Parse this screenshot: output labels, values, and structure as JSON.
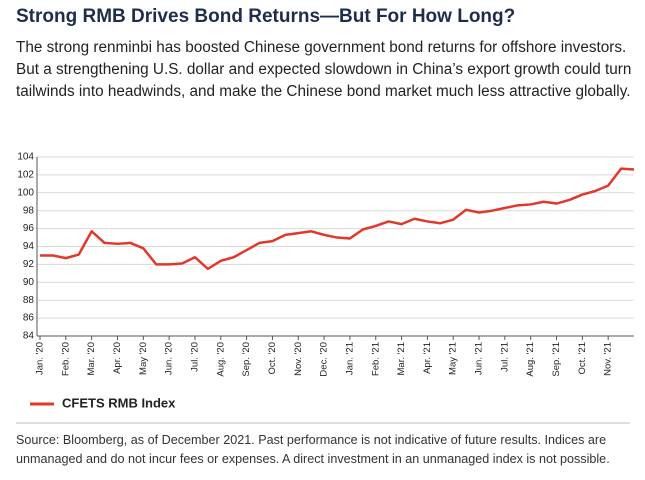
{
  "chart_data": {
    "type": "line",
    "title": "Strong RMB Drives Bond Returns—But For How Long?",
    "subtitle": "The strong renminbi has boosted Chinese government bond returns for offshore investors. But a strengthening U.S. dollar and expected slowdown in China’s export growth could turn tailwinds into headwinds, and make the Chinese bond market much less attractive globally.",
    "categories": [
      "Jan. '20",
      null,
      "Feb. '20",
      null,
      "Mar. '20",
      null,
      "Apr. '20",
      null,
      "May '20",
      null,
      "Jun. '20",
      null,
      "Jul. '20",
      null,
      "Aug. '20",
      null,
      "Sep. '20",
      null,
      "Oct. '20",
      null,
      "Nov. '20",
      null,
      "Dec. '20",
      null,
      "Jan. '21",
      null,
      "Feb. '21",
      null,
      "Mar. '21",
      null,
      "Apr. '21",
      null,
      "May '21",
      null,
      "Jun. '21",
      null,
      "Jul. '21",
      null,
      "Aug. '21",
      null,
      "Sep. '21",
      null,
      "Oct. '21",
      null,
      "Nov. '21",
      null,
      null
    ],
    "series": [
      {
        "name": "CFETS RMB Index",
        "color": "#e2372a",
        "values": [
          93.0,
          93.0,
          92.7,
          93.1,
          95.7,
          94.4,
          94.3,
          94.4,
          93.8,
          92.0,
          92.0,
          92.1,
          92.8,
          91.5,
          92.4,
          92.8,
          93.6,
          94.4,
          94.6,
          95.3,
          95.5,
          95.7,
          95.3,
          95.0,
          94.9,
          95.9,
          96.3,
          96.8,
          96.5,
          97.1,
          96.8,
          96.6,
          97.0,
          98.1,
          97.8,
          98.0,
          98.3,
          98.6,
          98.7,
          99.0,
          98.8,
          99.2,
          99.8,
          100.2,
          100.8,
          102.7,
          102.6
        ]
      }
    ],
    "ylim": [
      84,
      104
    ],
    "yticks": [
      84,
      86,
      88,
      90,
      92,
      94,
      96,
      98,
      100,
      102,
      104
    ],
    "grid": true,
    "source": "Source: Bloomberg, as of December 2021. Past performance is not indicative of future results. Indices are unmanaged and do not incur fees or expenses. A direct investment in an unmanaged index is not possible."
  }
}
